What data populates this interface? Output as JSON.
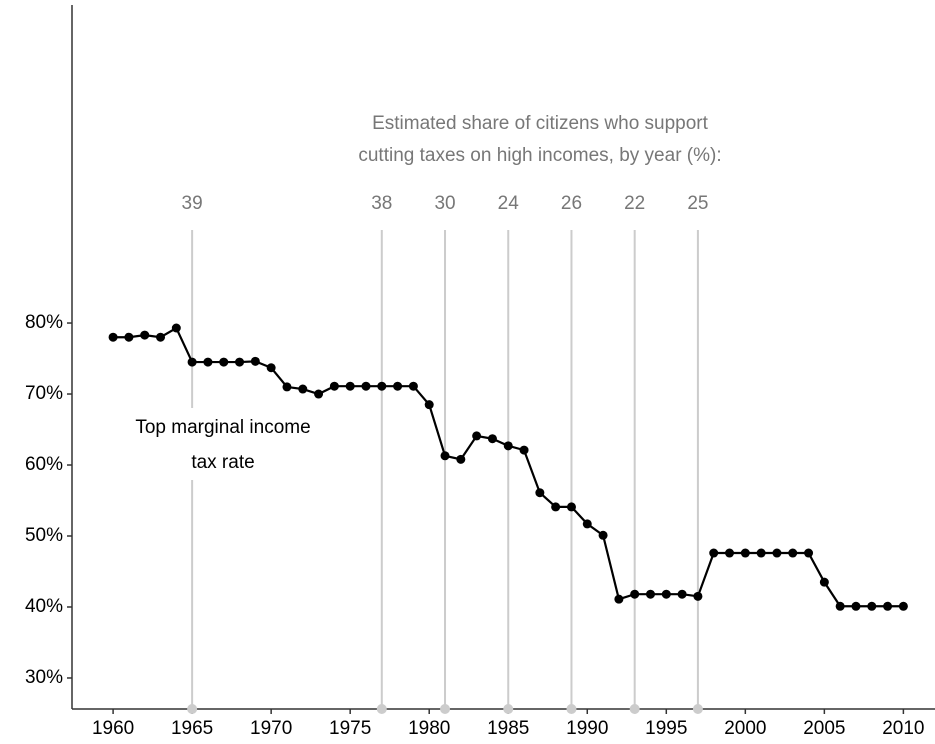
{
  "chart_data": {
    "type": "line",
    "title": [
      "Estimated share of citizens who support",
      "cutting taxes on high incomes, by year (%):"
    ],
    "annotation": [
      "Top marginal income",
      "tax rate"
    ],
    "x": [
      1960,
      1961,
      1962,
      1963,
      1964,
      1965,
      1966,
      1967,
      1968,
      1969,
      1970,
      1971,
      1972,
      1973,
      1974,
      1975,
      1976,
      1977,
      1978,
      1979,
      1980,
      1981,
      1982,
      1983,
      1984,
      1985,
      1986,
      1987,
      1988,
      1989,
      1990,
      1991,
      1992,
      1993,
      1994,
      1995,
      1996,
      1997,
      1998,
      1999,
      2000,
      2001,
      2002,
      2003,
      2004,
      2005,
      2006,
      2007,
      2008,
      2009,
      2010
    ],
    "values": [
      78.0,
      78.0,
      78.3,
      78.0,
      79.3,
      74.5,
      74.5,
      74.5,
      74.5,
      74.6,
      73.7,
      71.0,
      70.7,
      70.0,
      71.1,
      71.1,
      71.1,
      71.1,
      71.1,
      71.1,
      68.5,
      61.3,
      60.8,
      64.1,
      63.7,
      62.7,
      62.1,
      56.1,
      54.1,
      54.1,
      51.7,
      50.1,
      41.1,
      41.8,
      41.8,
      41.8,
      41.8,
      41.5,
      47.6,
      47.6,
      47.6,
      47.6,
      47.6,
      47.6,
      47.6,
      43.5,
      40.1,
      40.1,
      40.1,
      40.1,
      40.1
    ],
    "color": "#000000",
    "survey": {
      "x": [
        1965,
        1977,
        1981,
        1985,
        1989,
        1993,
        1997
      ],
      "values": [
        39,
        38,
        30,
        24,
        26,
        22,
        25
      ],
      "color": "#cccccc"
    },
    "xlim": [
      1957.4,
      2012.0
    ],
    "xticks": [
      1960,
      1965,
      1970,
      1975,
      1980,
      1985,
      1990,
      1995,
      2000,
      2005,
      2010
    ],
    "ylim": [
      25.63,
      124.8
    ],
    "yticks": [
      {
        "value": 30,
        "label": "30%"
      },
      {
        "value": 40,
        "label": "40%"
      },
      {
        "value": 50,
        "label": "50%"
      },
      {
        "value": 60,
        "label": "60%"
      },
      {
        "value": 70,
        "label": "70%"
      },
      {
        "value": 80,
        "label": "80%"
      }
    ]
  }
}
